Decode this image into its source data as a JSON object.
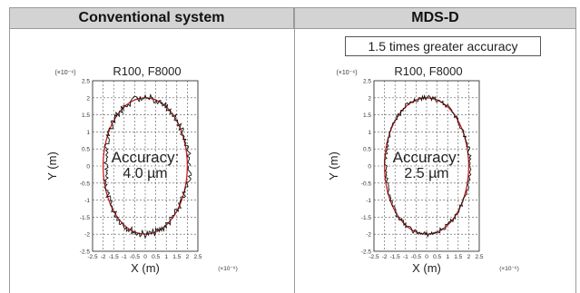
{
  "headers": {
    "left": "Conventional system",
    "right": "MDS-D"
  },
  "badge": "1.5 times greater accuracy",
  "colors": {
    "header_bg": "#d3d3d3",
    "measured": "#111111",
    "reference": "#cc2222",
    "grid": "#555555"
  },
  "chart_data": [
    {
      "type": "scatter",
      "panel": "Conventional system",
      "title": "R100, F8000",
      "xlabel": "X (m)",
      "ylabel": "Y (m)",
      "x_multiplier": "(×10⁻⁶)",
      "y_multiplier": "(×10⁻⁶)",
      "xlim": [
        -2.5,
        2.5
      ],
      "ylim": [
        -2.5,
        2.5
      ],
      "x_ticks": [
        "-2.5",
        "-2",
        "-1.5",
        "-1",
        "-0.5",
        "0",
        "0.5",
        "1",
        "1.5",
        "2",
        "2.5"
      ],
      "y_ticks": [
        "2.5",
        "2",
        "1.5",
        "1",
        "0.5",
        "0",
        "-0.5",
        "-1",
        "-1.5",
        "-2",
        "-2.5"
      ],
      "grid": true,
      "annotation_line1": "Accuracy:",
      "annotation_line2": "4.0 µm",
      "series": [
        {
          "name": "",
          "shape": "circle",
          "radius": 2.0,
          "color": "#cc2222"
        },
        {
          "name": "",
          "shape": "measured-trace",
          "radius": 2.0,
          "deviation": 0.2,
          "color": "#111111"
        }
      ]
    },
    {
      "type": "scatter",
      "panel": "MDS-D",
      "title": "R100, F8000",
      "xlabel": "X (m)",
      "ylabel": "Y (m)",
      "x_multiplier": "(×10⁻⁶)",
      "y_multiplier": "(×10⁻⁶)",
      "xlim": [
        -2.5,
        2.5
      ],
      "ylim": [
        -2.5,
        2.5
      ],
      "x_ticks": [
        "-2.5",
        "-2",
        "-1.5",
        "-1",
        "-0.5",
        "0",
        "0.5",
        "1",
        "1.5",
        "2",
        "2.5"
      ],
      "y_ticks": [
        "2.5",
        "2",
        "1.5",
        "1",
        "0.5",
        "0",
        "-0.5",
        "-1",
        "-1.5",
        "-2",
        "-2.5"
      ],
      "grid": true,
      "annotation_line1": "Accuracy:",
      "annotation_line2": "2.5 µm",
      "series": [
        {
          "name": "",
          "shape": "circle",
          "radius": 2.0,
          "color": "#cc2222"
        },
        {
          "name": "",
          "shape": "measured-trace",
          "radius": 2.0,
          "deviation": 0.125,
          "color": "#111111"
        }
      ]
    }
  ]
}
